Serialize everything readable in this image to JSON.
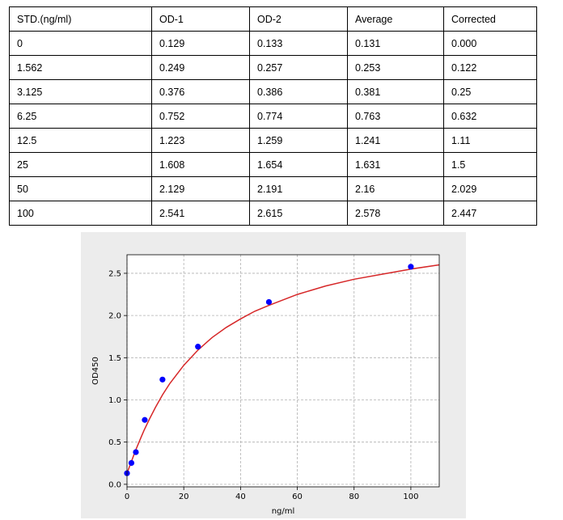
{
  "table": {
    "headers": [
      "STD.(ng/ml)",
      "OD-1",
      "OD-2",
      "Average",
      "Corrected"
    ],
    "rows": [
      [
        "0",
        "0.129",
        "0.133",
        "0.131",
        "0.000"
      ],
      [
        "1.562",
        "0.249",
        "0.257",
        "0.253",
        "0.122"
      ],
      [
        "3.125",
        "0.376",
        "0.386",
        "0.381",
        "0.25"
      ],
      [
        "6.25",
        "0.752",
        "0.774",
        "0.763",
        "0.632"
      ],
      [
        "12.5",
        "1.223",
        "1.259",
        "1.241",
        "1.11"
      ],
      [
        "25",
        "1.608",
        "1.654",
        "1.631",
        "1.5"
      ],
      [
        "50",
        "2.129",
        "2.191",
        "2.16",
        "2.029"
      ],
      [
        "100",
        "2.541",
        "2.615",
        "2.578",
        "2.447"
      ]
    ]
  },
  "chart_data": {
    "type": "scatter",
    "xlabel": "ng/ml",
    "ylabel": "OD450",
    "xlim": [
      0,
      110
    ],
    "ylim": [
      -0.03,
      2.72
    ],
    "x_ticks": [
      "0",
      "20",
      "40",
      "60",
      "80",
      "100"
    ],
    "y_ticks": [
      "0.0",
      "0.5",
      "1.0",
      "1.5",
      "2.0",
      "2.5"
    ],
    "grid": true,
    "series": [
      {
        "type": "scatter",
        "color": "#0000ff",
        "x": [
          0,
          1.562,
          3.125,
          6.25,
          12.5,
          25,
          50,
          100
        ],
        "y": [
          0.131,
          0.253,
          0.381,
          0.763,
          1.241,
          1.631,
          2.16,
          2.578
        ]
      },
      {
        "type": "line",
        "color": "#d62728",
        "fit": "four-parameter-logistic",
        "x": [
          0,
          1,
          2,
          3,
          4,
          5,
          6,
          8,
          10,
          12.5,
          15,
          20,
          25,
          30,
          35,
          40,
          45,
          50,
          60,
          70,
          80,
          90,
          100,
          110
        ],
        "y": [
          0.13,
          0.22,
          0.31,
          0.4,
          0.48,
          0.56,
          0.64,
          0.78,
          0.91,
          1.06,
          1.19,
          1.41,
          1.59,
          1.74,
          1.86,
          1.96,
          2.05,
          2.12,
          2.25,
          2.35,
          2.43,
          2.49,
          2.55,
          2.6
        ]
      }
    ]
  }
}
